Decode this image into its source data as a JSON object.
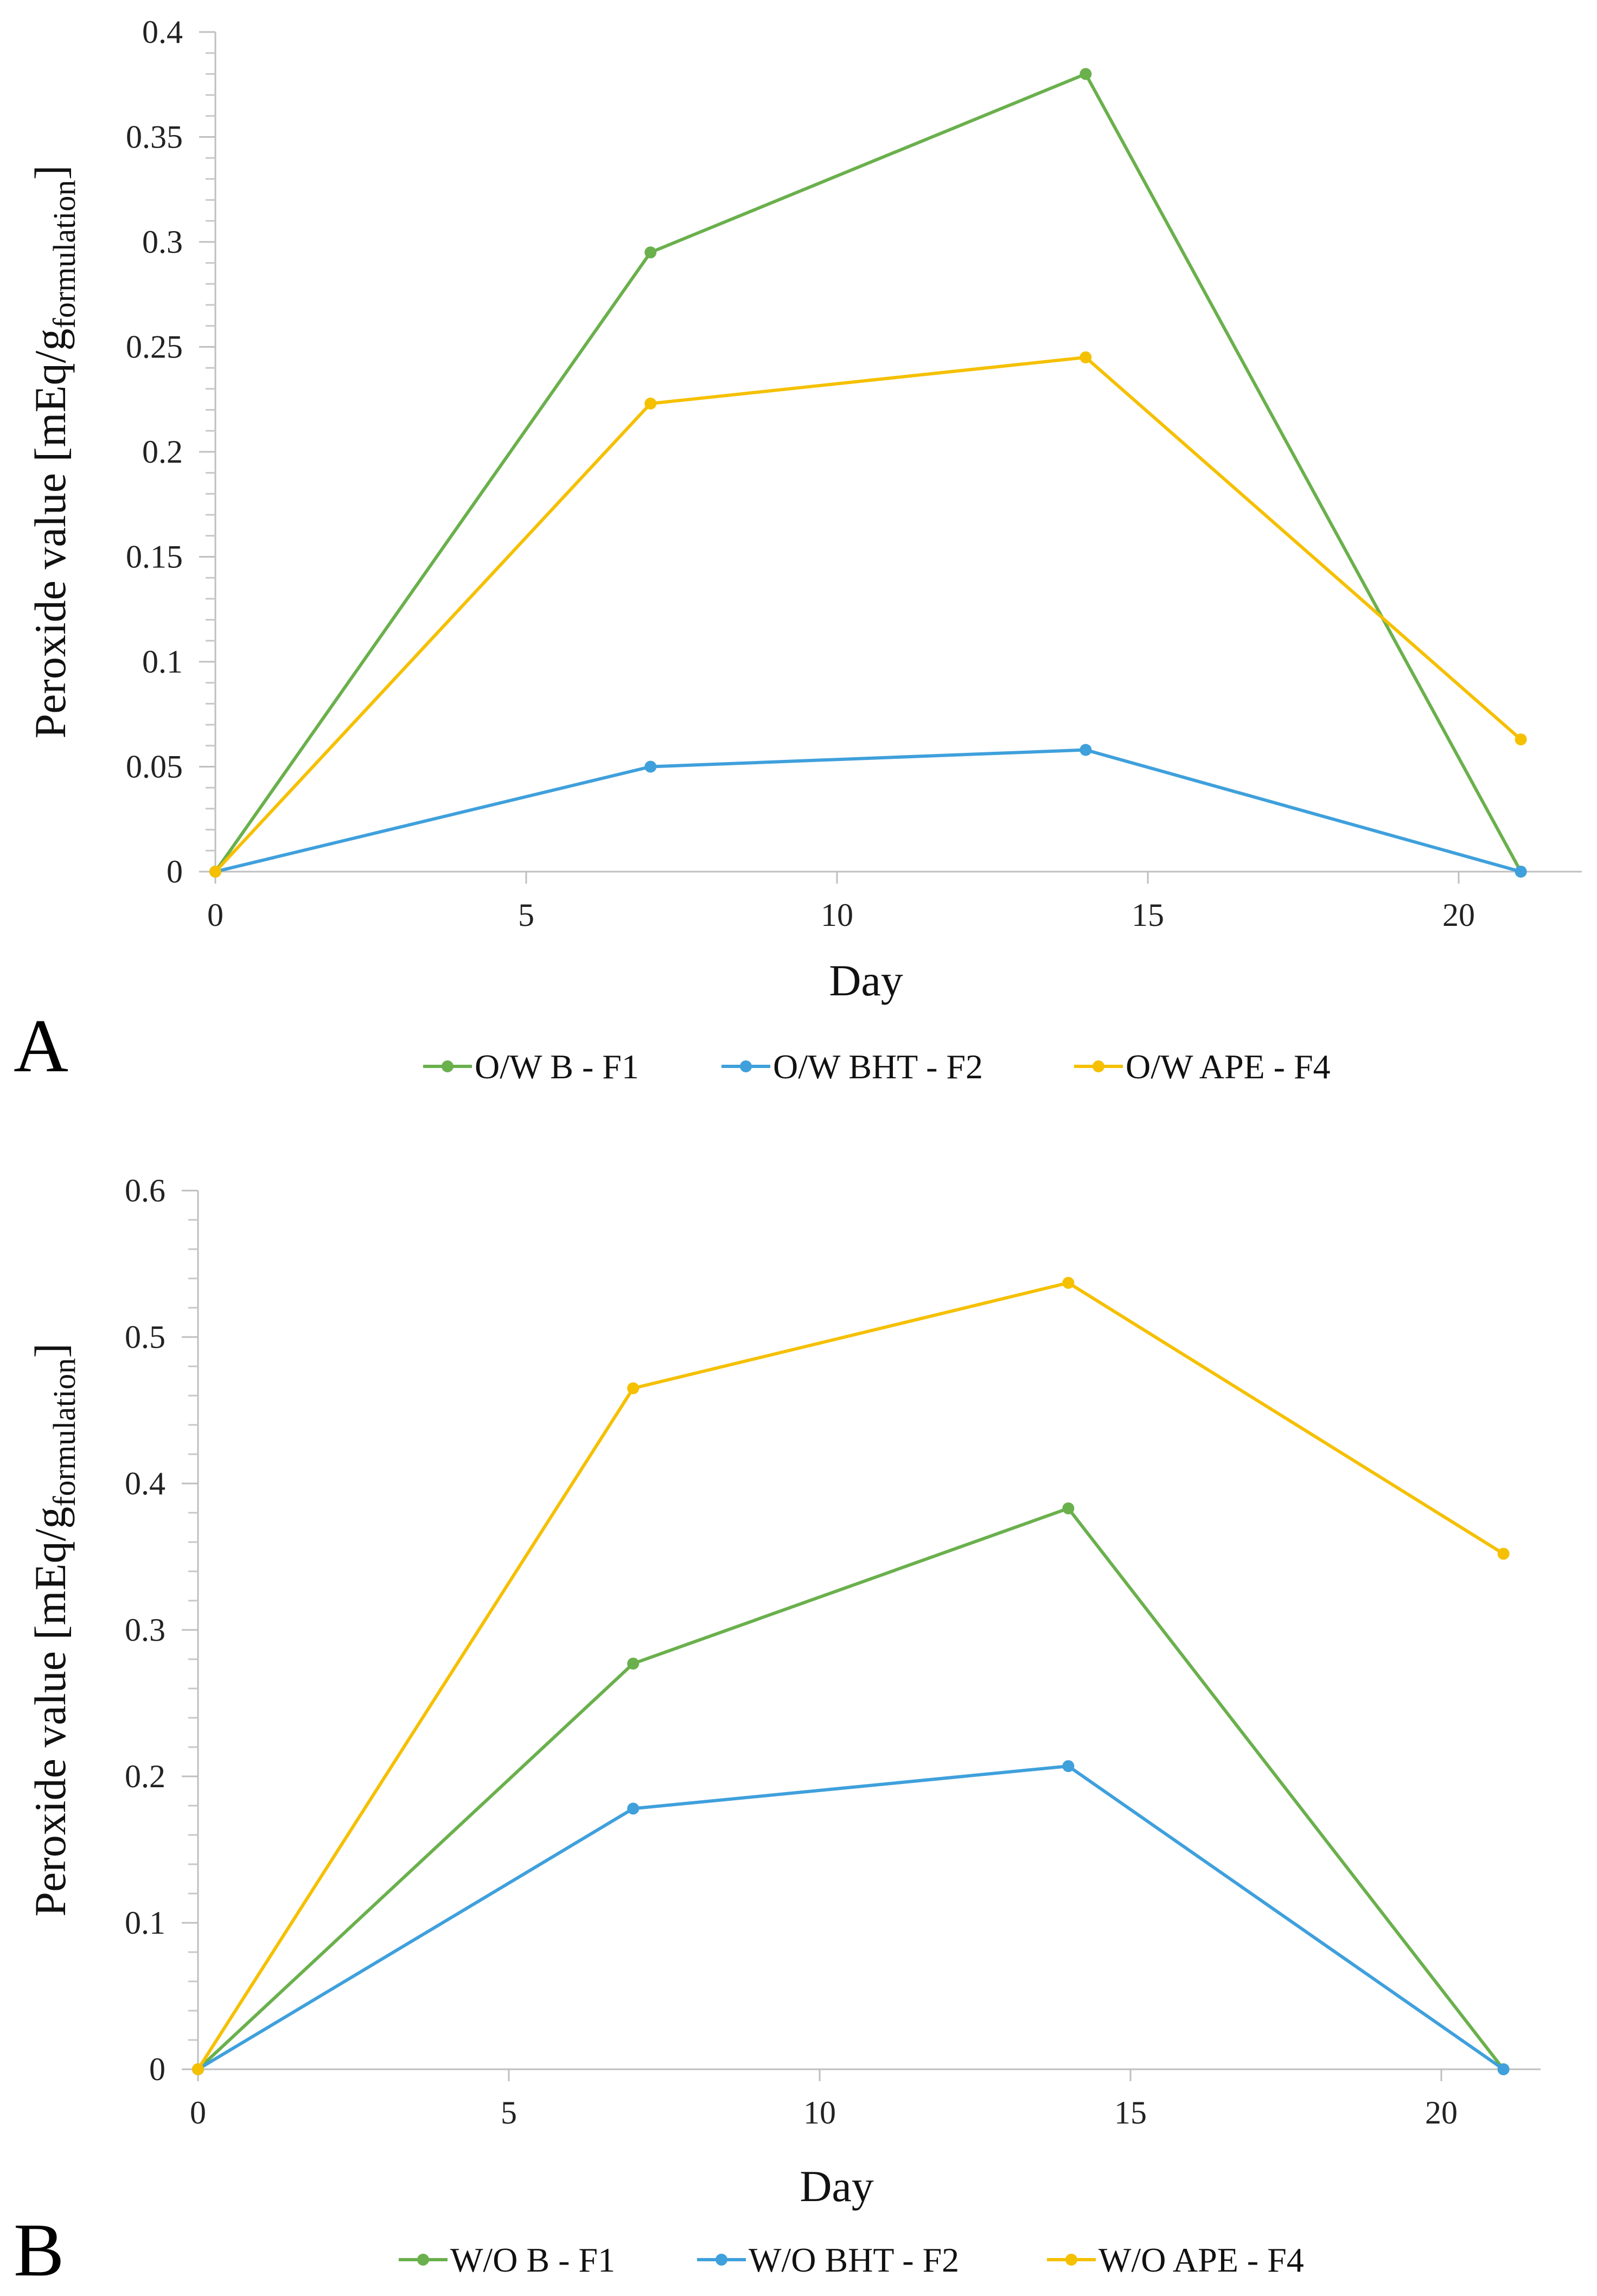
{
  "chart_data": [
    {
      "type": "line",
      "panel_label": "A",
      "xlabel": "Day",
      "ylabel_main": "Peroxide value [mEq/g",
      "ylabel_sub": "formulation",
      "ylabel_end": "]",
      "xlim": [
        0,
        21.8
      ],
      "ylim": [
        0,
        0.4
      ],
      "xticks": [
        0,
        5,
        10,
        15,
        20
      ],
      "yticks": [
        0,
        0.05,
        0.1,
        0.15,
        0.2,
        0.25,
        0.3,
        0.35,
        0.4
      ],
      "ytick_labels": [
        "0",
        "0.05",
        "0.1",
        "0.15",
        "0.2",
        "0.25",
        "0.3",
        "0.35",
        "0.4"
      ],
      "yminor": 0.01,
      "x": [
        0,
        7,
        14,
        21
      ],
      "legend_position": "bottom",
      "series": [
        {
          "name": "O/W B - F1",
          "color": "#6ab04c",
          "values": [
            0,
            0.295,
            0.38,
            0
          ]
        },
        {
          "name": "O/W BHT - F2",
          "color": "#3fa0dc",
          "values": [
            0,
            0.05,
            0.058,
            0
          ]
        },
        {
          "name": "O/W APE - F4",
          "color": "#f5c000",
          "values": [
            0,
            0.223,
            0.245,
            0.063
          ]
        }
      ]
    },
    {
      "type": "line",
      "panel_label": "B",
      "xlabel": "Day",
      "ylabel_main": "Peroxide value [mEq/g",
      "ylabel_sub": "formulation",
      "ylabel_end": "]",
      "xlim": [
        0,
        21.8
      ],
      "ylim": [
        0,
        0.6
      ],
      "xticks": [
        0,
        5,
        10,
        15,
        20
      ],
      "yticks": [
        0,
        0.1,
        0.2,
        0.3,
        0.4,
        0.5,
        0.6
      ],
      "ytick_labels": [
        "0",
        "0.1",
        "0.2",
        "0.3",
        "0.4",
        "0.5",
        "0.6"
      ],
      "yminor": 0.02,
      "x": [
        0,
        7,
        14,
        21
      ],
      "legend_position": "bottom",
      "series": [
        {
          "name": "W/O B - F1",
          "color": "#6ab04c",
          "values": [
            0,
            0.277,
            0.383,
            0
          ]
        },
        {
          "name": "W/O BHT - F2",
          "color": "#3fa0dc",
          "values": [
            0,
            0.178,
            0.207,
            0
          ]
        },
        {
          "name": "W/O APE - F4",
          "color": "#f5c000",
          "values": [
            0,
            0.465,
            0.537,
            0.352
          ]
        }
      ]
    }
  ]
}
